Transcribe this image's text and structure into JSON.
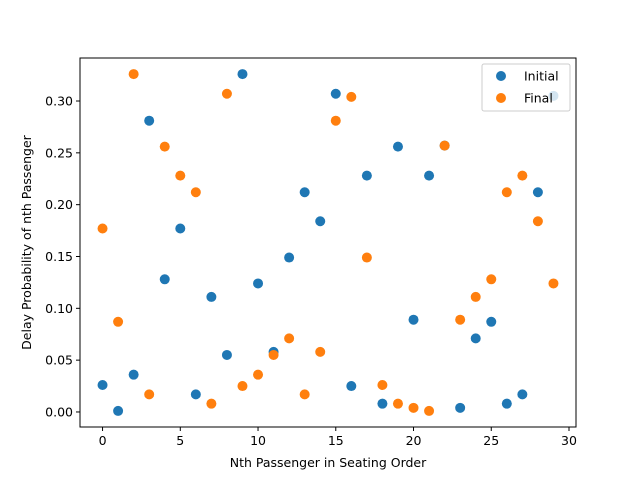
{
  "chart_data": {
    "type": "scatter",
    "title": "",
    "xlabel": "Nth Passenger in Seating Order",
    "ylabel": "Delay Probability of nth Passenger",
    "xlim": [
      -1.45,
      30.45
    ],
    "ylim": [
      -0.0145,
      0.3415
    ],
    "xticks": [
      0,
      5,
      10,
      15,
      20,
      25,
      30
    ],
    "xtick_labels": [
      "0",
      "5",
      "10",
      "15",
      "20",
      "25",
      "30"
    ],
    "yticks": [
      0.0,
      0.05,
      0.1,
      0.15,
      0.2,
      0.25,
      0.3
    ],
    "ytick_labels": [
      "0.00",
      "0.05",
      "0.10",
      "0.15",
      "0.20",
      "0.25",
      "0.30"
    ],
    "grid": false,
    "legend_position": "top-right",
    "x": [
      0,
      1,
      2,
      3,
      4,
      5,
      6,
      7,
      8,
      9,
      10,
      11,
      12,
      13,
      14,
      15,
      16,
      17,
      18,
      19,
      20,
      21,
      22,
      23,
      24,
      25,
      26,
      27,
      28,
      29
    ],
    "series": [
      {
        "name": "Initial",
        "color": "#1f77b4",
        "values": [
          0.026,
          0.001,
          0.036,
          0.281,
          0.128,
          0.177,
          0.017,
          0.111,
          0.055,
          0.326,
          0.124,
          0.058,
          0.149,
          0.212,
          0.184,
          0.307,
          0.025,
          0.228,
          0.008,
          0.256,
          0.089,
          0.228,
          0.257,
          0.004,
          0.071,
          0.087,
          0.008,
          0.017,
          0.212,
          0.305
        ]
      },
      {
        "name": "Final",
        "color": "#ff7f0e",
        "values": [
          0.177,
          0.087,
          0.326,
          0.017,
          0.256,
          0.228,
          0.212,
          0.008,
          0.307,
          0.025,
          0.036,
          0.055,
          0.071,
          0.017,
          0.058,
          0.281,
          0.304,
          0.149,
          0.026,
          0.008,
          0.004,
          0.001,
          0.257,
          0.089,
          0.111,
          0.128,
          0.212,
          0.228,
          0.184,
          0.124
        ]
      }
    ]
  }
}
